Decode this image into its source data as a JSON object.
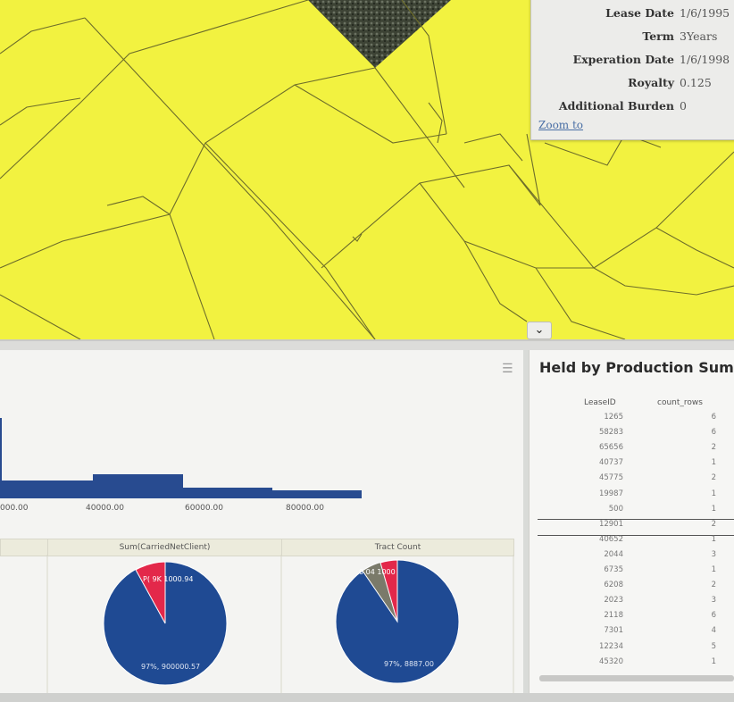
{
  "popup": {
    "fields": [
      {
        "label": "Lease Date",
        "value": "1/6/1995"
      },
      {
        "label": "Term",
        "value": "3Years"
      },
      {
        "label": "Experation Date",
        "value": "1/6/1998"
      },
      {
        "label": "Royalty",
        "value": "0.125"
      },
      {
        "label": "Additional Burden",
        "value": "0"
      }
    ],
    "zoom_link": "Zoom to"
  },
  "collapse_icon": "chevron-down-icon",
  "histogram": {
    "x_ticks": [
      "000.00",
      "40000.00",
      "60000.00",
      "80000.00"
    ],
    "bar_color": "#284b90"
  },
  "pies": [
    {
      "title": "Sum(CarriedNetClient)",
      "label_main": "97%, 900000.57"
    },
    {
      "title": "Tract Count",
      "label_main": "97%, 8887.00"
    }
  ],
  "held_by_production": {
    "title": "Held by Production Summ",
    "columns": [
      "LeaseID",
      "count_rows"
    ],
    "rows": [
      [
        "1265",
        "6"
      ],
      [
        "58283",
        "6"
      ],
      [
        "65656",
        "2"
      ],
      [
        "40737",
        "1"
      ],
      [
        "45775",
        "2"
      ],
      [
        "19987",
        "1"
      ],
      [
        "500",
        "1"
      ],
      [
        "12901",
        "2"
      ],
      [
        "40652",
        "1"
      ],
      [
        "2044",
        "3"
      ],
      [
        "6735",
        "1"
      ],
      [
        "6208",
        "2"
      ],
      [
        "2023",
        "3"
      ],
      [
        "2118",
        "6"
      ],
      [
        "7301",
        "4"
      ],
      [
        "12234",
        "5"
      ],
      [
        "45320",
        "1"
      ]
    ]
  },
  "colors": {
    "map_fill": "#f2f240",
    "pie_blue": "#1f4a93",
    "pie_red": "#e3284a",
    "pie_gray": "#7a7a6a"
  }
}
